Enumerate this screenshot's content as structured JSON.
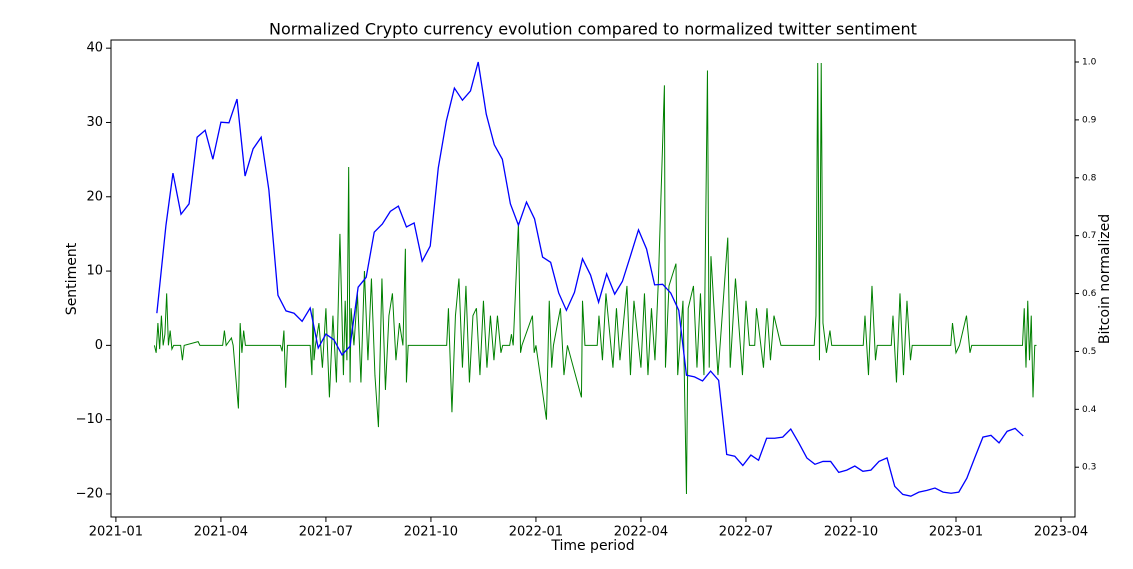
{
  "chart_data": {
    "type": "line",
    "title": "Normalized Crypto currency evolution compared to normalized twitter sentiment",
    "x_label": "Time period",
    "y_label": "Sentiment",
    "y2_label": "Bitcoin normalized",
    "xlim": [
      -0.14,
      27.4
    ],
    "xticks": [
      {
        "value": 0,
        "label": "2021-01"
      },
      {
        "value": 3,
        "label": "2021-04"
      },
      {
        "value": 6,
        "label": "2021-07"
      },
      {
        "value": 9,
        "label": "2021-10"
      },
      {
        "value": 12,
        "label": "2022-01"
      },
      {
        "value": 15,
        "label": "2022-04"
      },
      {
        "value": 18,
        "label": "2022-07"
      },
      {
        "value": 21,
        "label": "2022-10"
      },
      {
        "value": 24,
        "label": "2023-01"
      },
      {
        "value": 27,
        "label": "2023-04"
      }
    ],
    "ylim": [
      -23.1,
      41.1
    ],
    "yticks": [
      {
        "value": -20,
        "label": "−20"
      },
      {
        "value": -10,
        "label": "−10"
      },
      0,
      10,
      20,
      30,
      40
    ],
    "y2lim": [
      0.214,
      1.038
    ],
    "y2ticks": [
      0.3,
      0.4,
      0.5,
      0.6,
      0.7,
      0.8,
      0.9,
      {
        "value": 1,
        "label": "1.0"
      }
    ],
    "series": [
      {
        "name": "Sentiment",
        "color": "#008000",
        "x": [
          1.1,
          1.15,
          1.2,
          1.25,
          1.3,
          1.35,
          1.4,
          1.45,
          1.5,
          1.55,
          1.6,
          1.65,
          1.85,
          1.9,
          1.95,
          2.35,
          2.4,
          3.05,
          3.1,
          3.15,
          3.3,
          3.35,
          3.5,
          3.55,
          3.6,
          3.65,
          3.7,
          4.7,
          4.75,
          4.8,
          4.85,
          4.9,
          5.55,
          5.6,
          5.63,
          5.66,
          5.7,
          5.8,
          5.9,
          6.0,
          6.1,
          6.2,
          6.3,
          6.4,
          6.5,
          6.55,
          6.6,
          6.65,
          6.69,
          6.72,
          6.8,
          6.9,
          7.0,
          7.1,
          7.2,
          7.3,
          7.4,
          7.5,
          7.6,
          7.7,
          7.8,
          7.9,
          8.0,
          8.1,
          8.2,
          8.27,
          8.3,
          8.35,
          9.45,
          9.5,
          9.6,
          9.7,
          9.8,
          9.9,
          10.0,
          10.1,
          10.2,
          10.3,
          10.4,
          10.5,
          10.6,
          10.7,
          10.8,
          10.9,
          11.0,
          11.05,
          11.25,
          11.3,
          11.35,
          11.5,
          11.56,
          11.6,
          11.9,
          11.95,
          12.0,
          12.3,
          12.38,
          12.45,
          12.5,
          12.7,
          12.8,
          12.9,
          13.3,
          13.33,
          13.4,
          13.75,
          13.8,
          13.9,
          14.0,
          14.2,
          14.3,
          14.4,
          14.6,
          14.7,
          14.8,
          15.0,
          15.1,
          15.2,
          15.3,
          15.4,
          15.5,
          15.67,
          15.7,
          15.8,
          16.0,
          16.05,
          16.2,
          16.3,
          16.35,
          16.5,
          16.6,
          16.7,
          16.8,
          16.9,
          16.95,
          17.0,
          17.2,
          17.48,
          17.55,
          17.7,
          17.9,
          18.0,
          18.1,
          18.25,
          18.3,
          18.5,
          18.6,
          18.7,
          18.8,
          19.0,
          19.95,
          20.0,
          20.05,
          20.1,
          20.15,
          20.2,
          20.3,
          20.4,
          20.45,
          21.35,
          21.4,
          21.5,
          21.6,
          21.7,
          21.75,
          22.15,
          22.2,
          22.3,
          22.4,
          22.5,
          22.6,
          22.7,
          22.75,
          23.85,
          23.9,
          24.0,
          24.1,
          24.3,
          24.4,
          24.45,
          25.9,
          25.95,
          26.0,
          26.05,
          26.1,
          26.15,
          26.2,
          26.25,
          26.3
        ],
        "values": [
          0,
          -1,
          3,
          -0.5,
          4,
          0,
          1.5,
          7,
          0,
          2,
          -0.5,
          0,
          0,
          -2,
          0,
          0.5,
          0,
          0,
          2,
          0,
          1,
          0,
          -8.5,
          3,
          -1,
          2,
          0,
          0,
          -0.8,
          2,
          -5.7,
          0,
          0,
          -4,
          5,
          -2,
          0,
          3,
          -3,
          5,
          -7,
          4,
          -5,
          15,
          -4,
          6,
          -2,
          24,
          -5,
          5,
          0,
          7,
          -5,
          10,
          -2,
          9,
          -4,
          -11,
          9,
          -6,
          4,
          7,
          -2,
          3,
          0,
          13,
          -5,
          0,
          0,
          5,
          -9,
          4,
          9,
          -3,
          8,
          -5,
          4,
          5,
          -4,
          6,
          -3,
          4,
          -2,
          4,
          -1,
          0,
          0,
          1.5,
          0,
          16.5,
          -1,
          0,
          4,
          -1,
          0,
          -10,
          6,
          -3,
          0,
          5,
          -4,
          0,
          -7,
          6,
          0,
          0,
          4,
          -2,
          7,
          -3,
          5,
          -2,
          8,
          -4,
          6,
          -3,
          7,
          -4,
          5,
          -2,
          9,
          35,
          -3,
          8,
          11,
          -4,
          6,
          -20,
          5,
          8,
          -3,
          7,
          -4,
          37,
          -3,
          12,
          -4,
          14.5,
          -3,
          9,
          -4,
          6,
          0,
          0,
          5,
          -3,
          5,
          -2,
          4,
          0,
          0,
          4,
          38,
          -2,
          38,
          3,
          -1,
          2,
          0,
          0,
          4,
          -4,
          8,
          -2,
          0,
          0,
          4,
          -5,
          7,
          -4,
          6,
          -2,
          0,
          0,
          3,
          -1,
          0,
          4,
          -1,
          0,
          0,
          5,
          -3,
          6,
          -2,
          4,
          -7,
          0,
          0
        ]
      },
      {
        "name": "Bitcoin normalized",
        "color": "#0000ff",
        "axis": "y2",
        "x": [
          1.17,
          1.43,
          1.63,
          1.86,
          2.09,
          2.32,
          2.55,
          2.77,
          3.0,
          3.23,
          3.46,
          3.69,
          3.92,
          4.15,
          4.37,
          4.63,
          4.86,
          5.09,
          5.32,
          5.55,
          5.78,
          6.0,
          6.23,
          6.46,
          6.69,
          6.92,
          7.15,
          7.38,
          7.61,
          7.84,
          8.07,
          8.3,
          8.52,
          8.75,
          8.98,
          9.21,
          9.44,
          9.67,
          9.9,
          10.13,
          10.35,
          10.58,
          10.81,
          11.04,
          11.27,
          11.5,
          11.73,
          11.96,
          12.19,
          12.42,
          12.65,
          12.87,
          13.1,
          13.33,
          13.56,
          13.79,
          14.02,
          14.25,
          14.47,
          14.7,
          14.93,
          15.16,
          15.39,
          15.62,
          15.85,
          16.08,
          16.3,
          16.53,
          16.76,
          16.99,
          17.22,
          17.45,
          17.68,
          17.91,
          18.14,
          18.36,
          18.59,
          18.82,
          19.05,
          19.28,
          19.51,
          19.74,
          19.97,
          20.2,
          20.42,
          20.65,
          20.88,
          21.11,
          21.34,
          21.57,
          21.8,
          22.03,
          22.25,
          22.48,
          22.71,
          22.94,
          23.17,
          23.4,
          23.63,
          23.86,
          24.08,
          24.31,
          24.54,
          24.77,
          25.0,
          25.23,
          25.46,
          25.69,
          25.92
        ],
        "values": [
          0.566,
          0.718,
          0.808,
          0.737,
          0.755,
          0.87,
          0.882,
          0.832,
          0.896,
          0.895,
          0.936,
          0.803,
          0.85,
          0.87,
          0.779,
          0.597,
          0.57,
          0.566,
          0.552,
          0.575,
          0.506,
          0.53,
          0.52,
          0.494,
          0.509,
          0.611,
          0.628,
          0.706,
          0.72,
          0.742,
          0.751,
          0.715,
          0.722,
          0.656,
          0.682,
          0.817,
          0.898,
          0.955,
          0.934,
          0.95,
          1.0,
          0.91,
          0.857,
          0.832,
          0.755,
          0.718,
          0.758,
          0.729,
          0.663,
          0.654,
          0.601,
          0.571,
          0.602,
          0.66,
          0.632,
          0.585,
          0.634,
          0.599,
          0.621,
          0.665,
          0.71,
          0.677,
          0.615,
          0.616,
          0.601,
          0.571,
          0.459,
          0.456,
          0.449,
          0.466,
          0.45,
          0.322,
          0.319,
          0.303,
          0.321,
          0.312,
          0.35,
          0.35,
          0.352,
          0.366,
          0.342,
          0.316,
          0.305,
          0.31,
          0.31,
          0.291,
          0.295,
          0.302,
          0.293,
          0.295,
          0.31,
          0.316,
          0.267,
          0.253,
          0.25,
          0.257,
          0.26,
          0.264,
          0.257,
          0.255,
          0.257,
          0.281,
          0.317,
          0.352,
          0.355,
          0.342,
          0.362,
          0.367,
          0.354
        ]
      }
    ]
  }
}
